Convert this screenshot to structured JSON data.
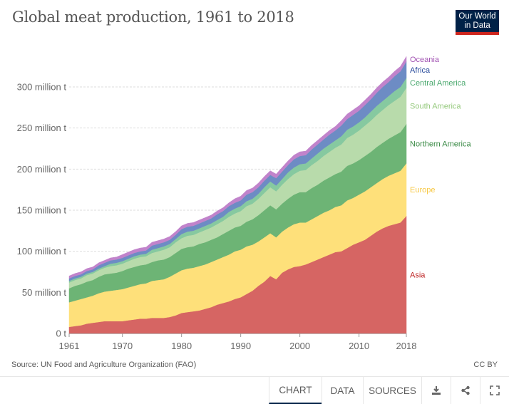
{
  "header": {
    "title": "Global meat production, 1961 to 2018",
    "logo_line1": "Our World",
    "logo_line2": "in Data"
  },
  "footer": {
    "source": "Source: UN Food and Agriculture Organization (FAO)",
    "license": "CC BY"
  },
  "controls": {
    "tabs": [
      {
        "label": "CHART",
        "active": true
      },
      {
        "label": "DATA",
        "active": false
      },
      {
        "label": "SOURCES",
        "active": false
      }
    ],
    "icons": [
      "download-icon",
      "share-icon",
      "fullscreen-icon"
    ]
  },
  "chart_data": {
    "type": "area",
    "stacked": true,
    "title": "Global meat production, 1961 to 2018",
    "xlabel": "",
    "ylabel": "",
    "unit": "million t",
    "x_range": [
      1961,
      2018
    ],
    "ylim": [
      0,
      340
    ],
    "grid": "horizontal-dashed",
    "legend_placement": "right-inline",
    "x_ticks": [
      "1961",
      "1970",
      "1980",
      "1990",
      "2000",
      "2010",
      "2018"
    ],
    "y_ticks": [
      {
        "value": 0,
        "label": "0 t"
      },
      {
        "value": 50,
        "label": "50 million t"
      },
      {
        "value": 100,
        "label": "100 million t"
      },
      {
        "value": 150,
        "label": "150 million t"
      },
      {
        "value": 200,
        "label": "200 million t"
      },
      {
        "value": 250,
        "label": "250 million t"
      },
      {
        "value": 300,
        "label": "300 million t"
      }
    ],
    "x": [
      1961,
      1962,
      1963,
      1964,
      1965,
      1966,
      1967,
      1968,
      1969,
      1970,
      1971,
      1972,
      1973,
      1974,
      1975,
      1976,
      1977,
      1978,
      1979,
      1980,
      1981,
      1982,
      1983,
      1984,
      1985,
      1986,
      1987,
      1988,
      1989,
      1990,
      1991,
      1992,
      1993,
      1994,
      1995,
      1996,
      1997,
      1998,
      1999,
      2000,
      2001,
      2002,
      2003,
      2004,
      2005,
      2006,
      2007,
      2008,
      2009,
      2010,
      2011,
      2012,
      2013,
      2014,
      2015,
      2016,
      2017,
      2018
    ],
    "series": [
      {
        "name": "Asia",
        "color": "#d66563",
        "label_color": "#be2424",
        "values": [
          8,
          9,
          10,
          12,
          13,
          14,
          15,
          15,
          15,
          15,
          16,
          17,
          18,
          18,
          19,
          19,
          19,
          20,
          22,
          25,
          26,
          27,
          28,
          30,
          32,
          35,
          37,
          39,
          42,
          44,
          48,
          52,
          58,
          63,
          70,
          66,
          74,
          78,
          81,
          82,
          84,
          87,
          90,
          93,
          96,
          99,
          100,
          104,
          108,
          111,
          114,
          119,
          124,
          128,
          131,
          133,
          135,
          143
        ]
      },
      {
        "name": "Europe",
        "color": "#fee07a",
        "label_color": "#f7c844",
        "values": [
          30,
          31,
          32,
          32,
          33,
          35,
          36,
          37,
          38,
          39,
          40,
          41,
          42,
          43,
          45,
          46,
          47,
          49,
          51,
          52,
          53,
          53,
          54,
          54,
          55,
          55,
          56,
          57,
          58,
          58,
          58,
          56,
          54,
          54,
          52,
          51,
          50,
          51,
          52,
          53,
          51,
          52,
          53,
          54,
          54,
          55,
          56,
          58,
          57,
          58,
          59,
          59,
          59,
          60,
          61,
          62,
          63,
          64
        ]
      },
      {
        "name": "Northern America",
        "color": "#6db475",
        "label_color": "#3a8a45",
        "values": [
          17,
          18,
          18,
          19,
          19,
          20,
          21,
          21,
          21,
          22,
          23,
          23,
          23,
          23,
          23,
          24,
          24,
          24,
          25,
          26,
          26,
          26,
          27,
          27,
          27,
          27,
          28,
          29,
          29,
          29,
          30,
          31,
          32,
          33,
          34,
          34,
          34,
          35,
          36,
          37,
          37,
          38,
          38,
          39,
          40,
          40,
          41,
          42,
          42,
          42,
          43,
          43,
          44,
          44,
          45,
          46,
          47,
          48
        ]
      },
      {
        "name": "South America",
        "color": "#b8dbab",
        "label_color": "#95c97d",
        "values": [
          7,
          7,
          7,
          8,
          8,
          8,
          8,
          9,
          9,
          9,
          9,
          10,
          10,
          10,
          11,
          11,
          12,
          12,
          13,
          13,
          14,
          14,
          14,
          15,
          15,
          16,
          16,
          17,
          17,
          18,
          19,
          19,
          20,
          21,
          22,
          22,
          23,
          24,
          25,
          26,
          27,
          28,
          29,
          30,
          31,
          32,
          33,
          34,
          35,
          36,
          37,
          38,
          39,
          40,
          41,
          42,
          43,
          44
        ]
      },
      {
        "name": "Central America",
        "color": "#86c9a0",
        "label_color": "#4aa86e",
        "values": [
          2,
          2,
          2,
          2,
          2,
          2,
          2,
          3,
          3,
          3,
          3,
          3,
          3,
          3,
          4,
          4,
          4,
          4,
          4,
          5,
          5,
          5,
          5,
          5,
          5,
          5,
          5,
          6,
          6,
          6,
          6,
          6,
          6,
          7,
          7,
          7,
          7,
          8,
          8,
          8,
          8,
          8,
          9,
          9,
          9,
          9,
          10,
          10,
          10,
          10,
          10,
          11,
          11,
          11,
          11,
          12,
          12,
          12
        ]
      },
      {
        "name": "Africa",
        "color": "#6d8cc4",
        "label_color": "#2a4c9c",
        "values": [
          3,
          3,
          3,
          3,
          3,
          4,
          4,
          4,
          4,
          4,
          4,
          4,
          4,
          4,
          5,
          5,
          5,
          5,
          5,
          6,
          6,
          6,
          6,
          6,
          6,
          7,
          7,
          7,
          7,
          7,
          8,
          8,
          8,
          8,
          8,
          9,
          9,
          9,
          10,
          10,
          10,
          11,
          11,
          11,
          12,
          12,
          13,
          13,
          14,
          14,
          15,
          15,
          16,
          17,
          17,
          18,
          19,
          20
        ]
      },
      {
        "name": "Oceania",
        "color": "#c183cb",
        "label_color": "#a254b3",
        "values": [
          3,
          3,
          3,
          3,
          3,
          3,
          3,
          3,
          3,
          4,
          4,
          4,
          4,
          4,
          4,
          4,
          4,
          4,
          4,
          4,
          4,
          4,
          4,
          4,
          4,
          4,
          4,
          4,
          5,
          5,
          5,
          5,
          5,
          5,
          5,
          5,
          5,
          5,
          5,
          5,
          5,
          5,
          5,
          5,
          5,
          5,
          6,
          6,
          6,
          6,
          6,
          6,
          6,
          6,
          6,
          6,
          6,
          6
        ]
      }
    ]
  }
}
